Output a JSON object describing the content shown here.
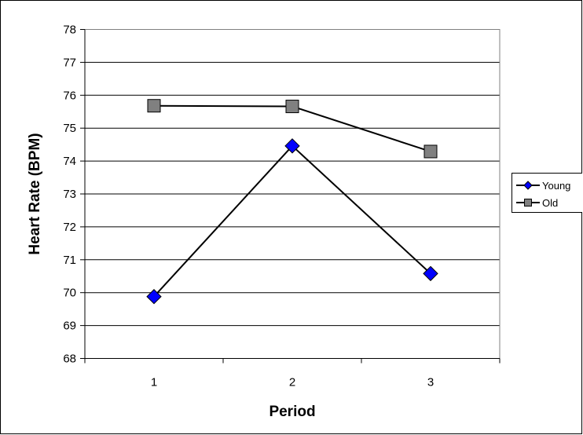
{
  "chart_data": {
    "type": "line",
    "title": "",
    "xlabel": "Period",
    "ylabel": "Heart Rate (BPM)",
    "categories": [
      "1",
      "2",
      "3"
    ],
    "ylim": [
      68,
      78
    ],
    "yticks": [
      "68",
      "69",
      "70",
      "71",
      "72",
      "73",
      "74",
      "75",
      "76",
      "77",
      "78"
    ],
    "grid": true,
    "legend_position": "right",
    "series": [
      {
        "name": "Young",
        "values": [
          69.88,
          74.46,
          70.58
        ],
        "color": "#0000ff",
        "marker": "diamond"
      },
      {
        "name": "Old",
        "values": [
          75.68,
          75.66,
          74.29
        ],
        "color": "#808080",
        "marker": "square"
      }
    ]
  }
}
